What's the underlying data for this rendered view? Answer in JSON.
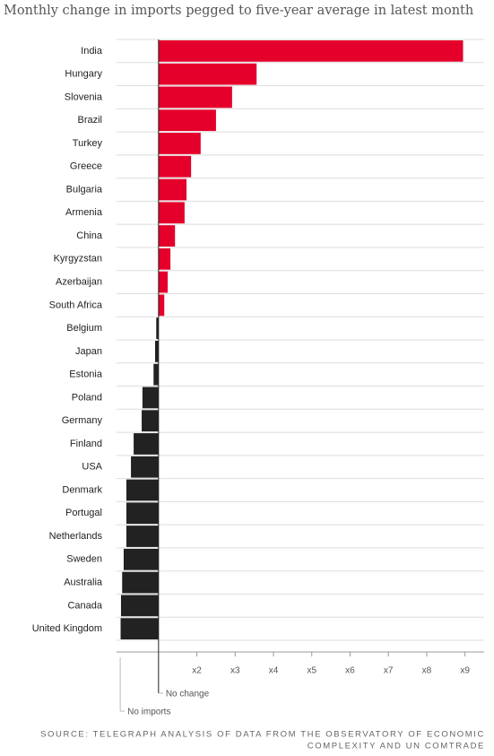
{
  "chart_data": {
    "type": "hbar",
    "title": "Monthly change in imports pegged to five-year average in latest month",
    "categories": [
      "India",
      "Hungary",
      "Slovenia",
      "Brazil",
      "Turkey",
      "Greece",
      "Bulgaria",
      "Armenia",
      "China",
      "Kyrgyzstan",
      "Azerbaijan",
      "South Africa",
      "Belgium",
      "Japan",
      "Estonia",
      "Poland",
      "Germany",
      "Finland",
      "USA",
      "Denmark",
      "Portugal",
      "Netherlands",
      "Sweden",
      "Australia",
      "Canada",
      "United Kingdom"
    ],
    "values": [
      8.95,
      3.56,
      2.92,
      2.5,
      2.1,
      1.85,
      1.73,
      1.68,
      1.43,
      1.31,
      1.24,
      1.15,
      0.94,
      0.91,
      0.87,
      0.58,
      0.56,
      0.35,
      0.28,
      0.16,
      0.16,
      0.16,
      0.09,
      0.05,
      0.02,
      0.01
    ],
    "baseline": 1,
    "color_above": "#e4002b",
    "color_below": "#222222",
    "xlim": [
      -0.33,
      9.5
    ],
    "xticks": [
      {
        "value": 0,
        "label": "No imports"
      },
      {
        "value": 1,
        "label": "No change"
      },
      {
        "value": 2,
        "label": "x2"
      },
      {
        "value": 3,
        "label": "x3"
      },
      {
        "value": 4,
        "label": "x4"
      },
      {
        "value": 5,
        "label": "x5"
      },
      {
        "value": 6,
        "label": "x6"
      },
      {
        "value": 7,
        "label": "x7"
      },
      {
        "value": 8,
        "label": "x8"
      },
      {
        "value": 9,
        "label": "x9"
      }
    ],
    "grid": false,
    "source": [
      "SOURCE: TELEGRAPH ANALYSIS OF DATA FROM THE OBSERVATORY OF ECONOMIC",
      "COMPLEXITY AND UN COMTRADE"
    ]
  }
}
